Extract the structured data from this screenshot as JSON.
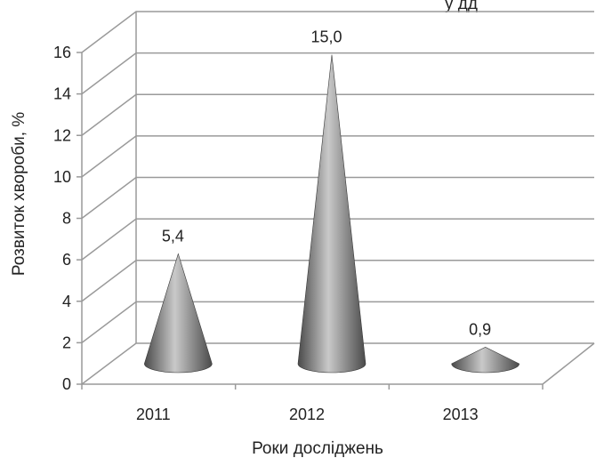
{
  "chart_data": {
    "type": "bar",
    "mark_shape": "cone",
    "title": "",
    "visible_title_fragment": "у     дд",
    "categories": [
      "2011",
      "2012",
      "2013"
    ],
    "values": [
      5.4,
      15.0,
      0.9
    ],
    "value_labels": [
      "5,4",
      "15,0",
      "0,9"
    ],
    "xlabel": "Роки досліджень",
    "ylabel": "Розвиток хвороби, %",
    "ylim": [
      0,
      16
    ],
    "yticks": [
      "0",
      "2",
      "4",
      "6",
      "8",
      "10",
      "12",
      "14",
      "16"
    ],
    "grid": true,
    "legend": "none",
    "colors": {
      "cone_dark": "#4a4a4a",
      "cone_light": "#c9c9c9",
      "grid": "#9a9a9a",
      "text": "#222222"
    }
  }
}
